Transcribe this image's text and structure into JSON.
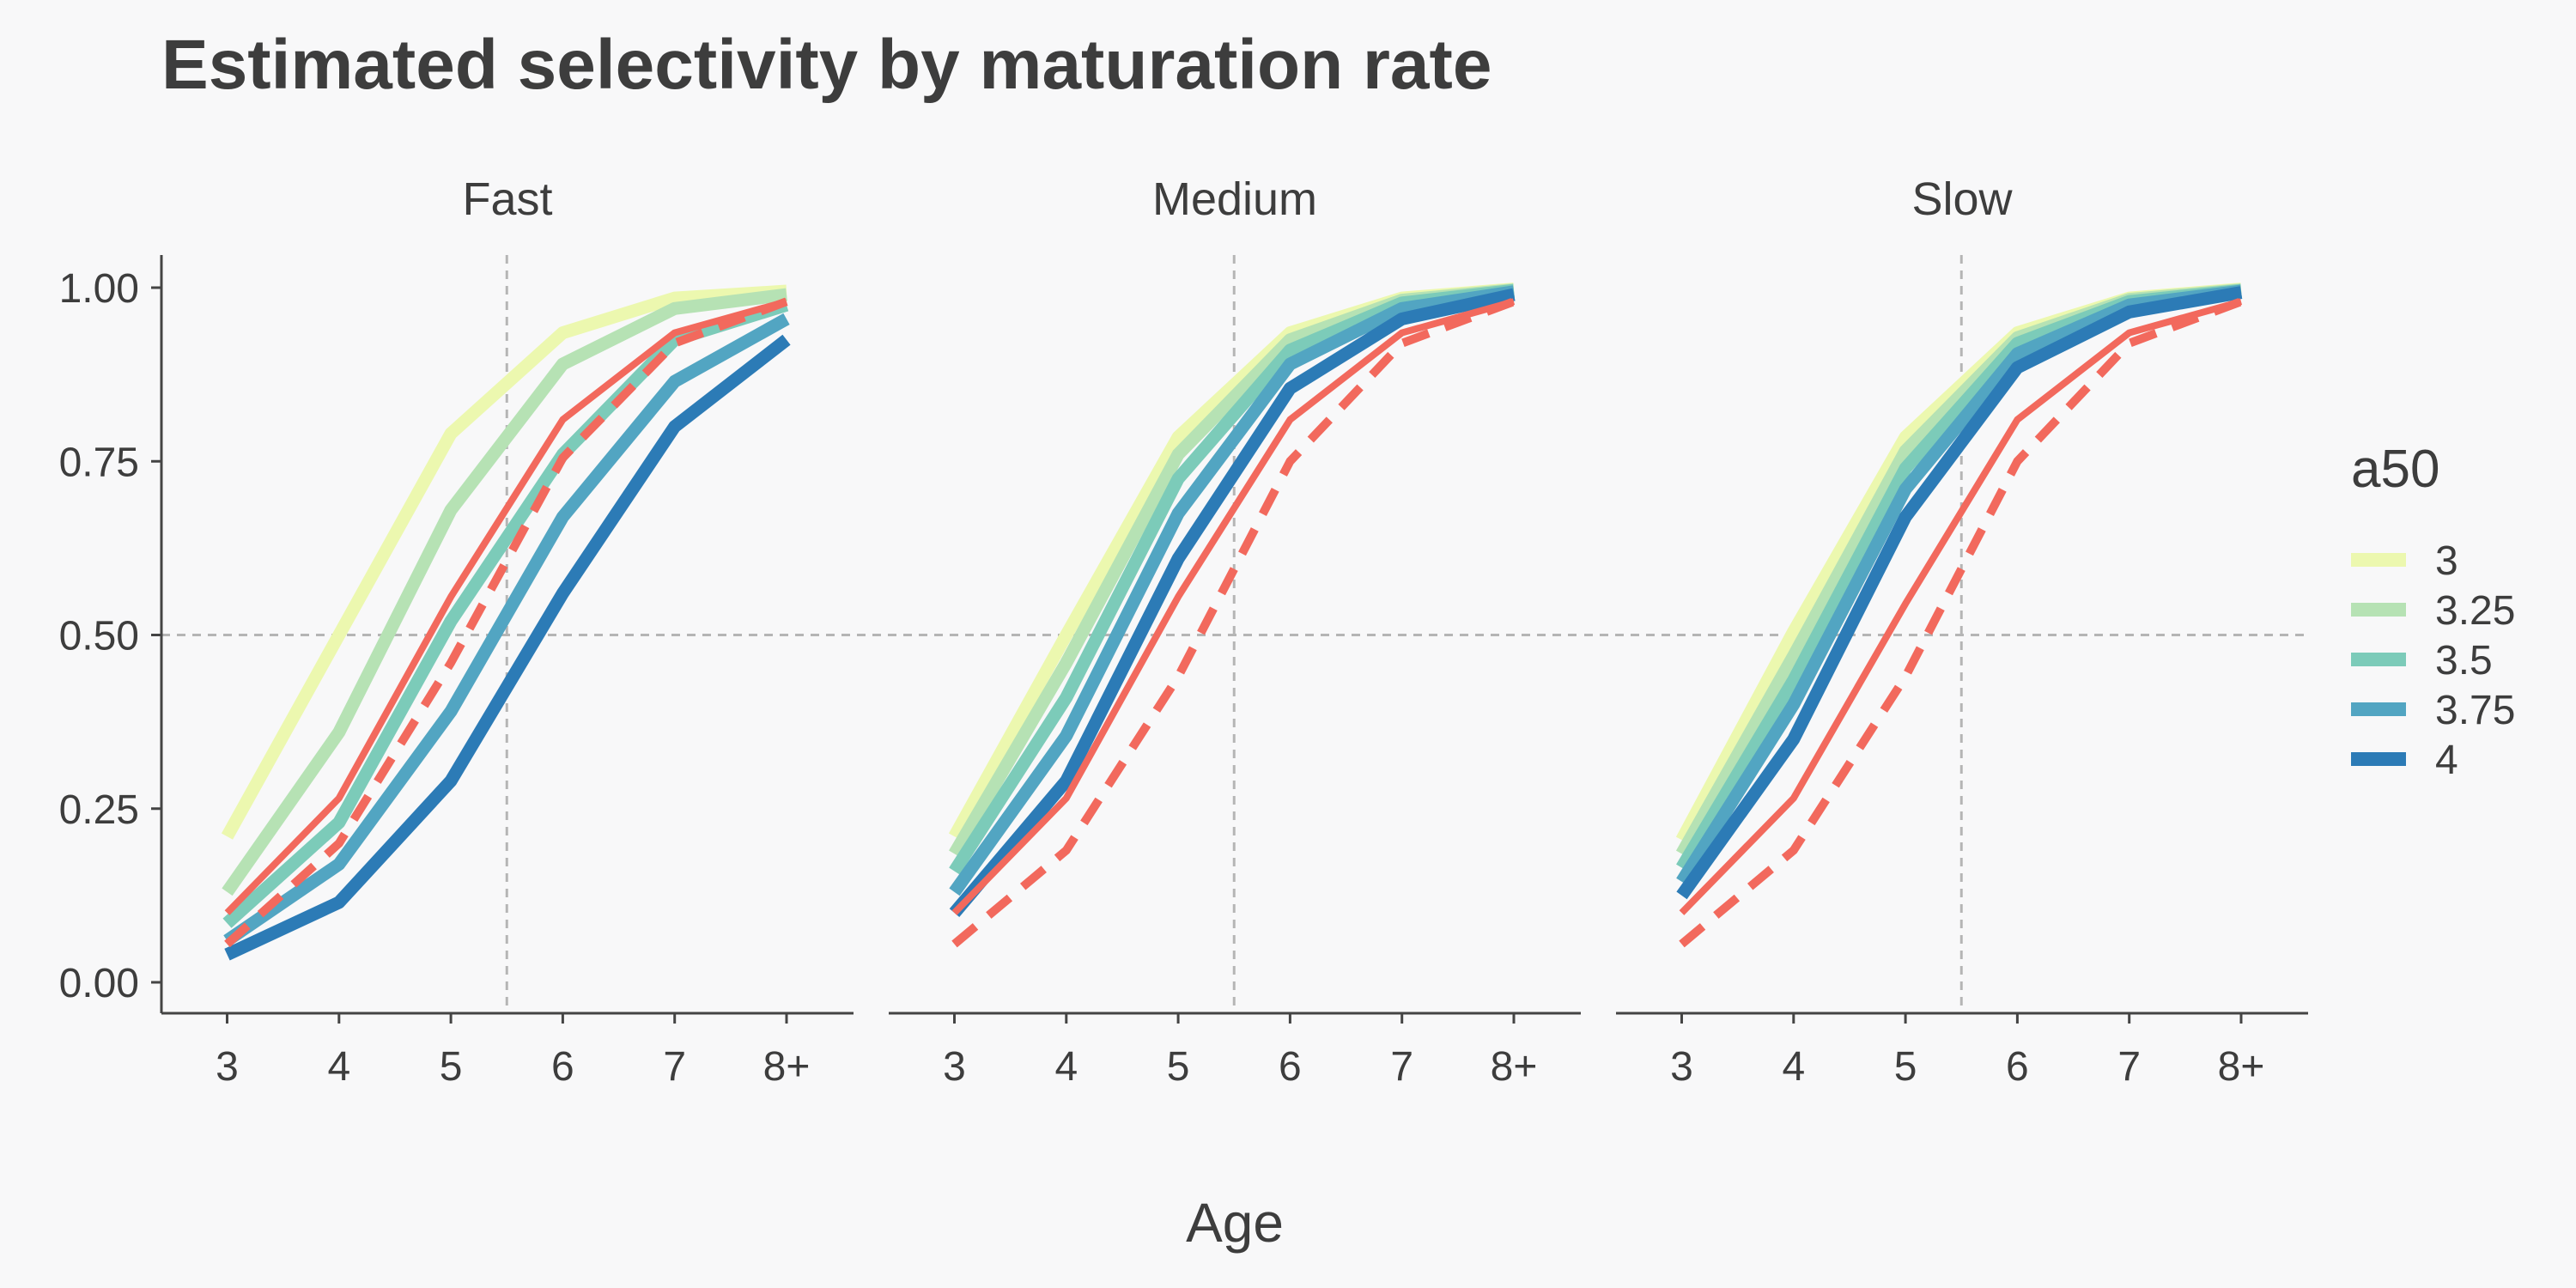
{
  "chart_data": {
    "type": "line",
    "title": "Estimated selectivity by maturation rate",
    "xlabel": "Age",
    "ylabel": "",
    "ylim": [
      0,
      1
    ],
    "yticks": [
      "0.00",
      "0.25",
      "0.50",
      "0.75",
      "1.00"
    ],
    "ytick_values": [
      0,
      0.25,
      0.5,
      0.75,
      1.0
    ],
    "categories": [
      "3",
      "4",
      "5",
      "6",
      "7",
      "8+"
    ],
    "reference_lines": {
      "vertical_x": 5.5,
      "horizontal_y": 0.5
    },
    "grid": false,
    "legend": {
      "title": "a50",
      "placement": "right",
      "entries": [
        {
          "label": "3",
          "color": "#ecf8af"
        },
        {
          "label": "3.25",
          "color": "#b6e2b4"
        },
        {
          "label": "3.5",
          "color": "#7ccbb9"
        },
        {
          "label": "3.75",
          "color": "#52a5c2"
        },
        {
          "label": "4",
          "color": "#2c7bb6"
        }
      ]
    },
    "reference_color": "#f2695d",
    "panels": [
      {
        "name": "Fast",
        "series": [
          {
            "a50": "3",
            "color": "#ecf8af",
            "values": [
              0.21,
              0.5,
              0.79,
              0.935,
              0.985,
              0.995
            ]
          },
          {
            "a50": "3.25",
            "color": "#b6e2b4",
            "values": [
              0.13,
              0.36,
              0.68,
              0.89,
              0.97,
              0.99
            ]
          },
          {
            "a50": "3.5",
            "color": "#7ccbb9",
            "values": [
              0.085,
              0.23,
              0.52,
              0.76,
              0.925,
              0.975
            ]
          },
          {
            "a50": "3.75",
            "color": "#52a5c2",
            "values": [
              0.06,
              0.17,
              0.39,
              0.67,
              0.865,
              0.955
            ]
          },
          {
            "a50": "4",
            "color": "#2c7bb6",
            "values": [
              0.04,
              0.115,
              0.29,
              0.56,
              0.8,
              0.925
            ]
          }
        ],
        "reference_solid": [
          0.1,
          0.265,
          0.555,
          0.81,
          0.935,
          0.98
        ],
        "reference_dashed": [
          0.055,
          0.2,
          0.46,
          0.755,
          0.92,
          0.98
        ]
      },
      {
        "name": "Medium",
        "series": [
          {
            "a50": "3",
            "color": "#ecf8af",
            "values": [
              0.21,
              0.5,
              0.785,
              0.935,
              0.985,
              0.998
            ]
          },
          {
            "a50": "3.25",
            "color": "#b6e2b4",
            "values": [
              0.185,
              0.46,
              0.76,
              0.925,
              0.982,
              0.997
            ]
          },
          {
            "a50": "3.5",
            "color": "#7ccbb9",
            "values": [
              0.16,
              0.41,
              0.725,
              0.91,
              0.978,
              0.996
            ]
          },
          {
            "a50": "3.75",
            "color": "#52a5c2",
            "values": [
              0.13,
              0.355,
              0.675,
              0.89,
              0.97,
              0.994
            ]
          },
          {
            "a50": "4",
            "color": "#2c7bb6",
            "values": [
              0.1,
              0.29,
              0.61,
              0.855,
              0.955,
              0.99
            ]
          }
        ],
        "reference_solid": [
          0.1,
          0.265,
          0.555,
          0.81,
          0.935,
          0.98
        ],
        "reference_dashed": [
          0.055,
          0.19,
          0.44,
          0.75,
          0.92,
          0.98
        ]
      },
      {
        "name": "Slow",
        "series": [
          {
            "a50": "3",
            "color": "#ecf8af",
            "values": [
              0.205,
              0.505,
              0.785,
              0.935,
              0.985,
              0.998
            ]
          },
          {
            "a50": "3.25",
            "color": "#b6e2b4",
            "values": [
              0.185,
              0.47,
              0.765,
              0.928,
              0.983,
              0.997
            ]
          },
          {
            "a50": "3.5",
            "color": "#7ccbb9",
            "values": [
              0.165,
              0.435,
              0.74,
              0.92,
              0.98,
              0.996
            ]
          },
          {
            "a50": "3.75",
            "color": "#52a5c2",
            "values": [
              0.145,
              0.4,
              0.71,
              0.905,
              0.975,
              0.995
            ]
          },
          {
            "a50": "4",
            "color": "#2c7bb6",
            "values": [
              0.125,
              0.35,
              0.67,
              0.885,
              0.965,
              0.993
            ]
          }
        ],
        "reference_solid": [
          0.1,
          0.265,
          0.545,
          0.81,
          0.935,
          0.98
        ],
        "reference_dashed": [
          0.055,
          0.19,
          0.44,
          0.75,
          0.92,
          0.98
        ]
      }
    ]
  }
}
